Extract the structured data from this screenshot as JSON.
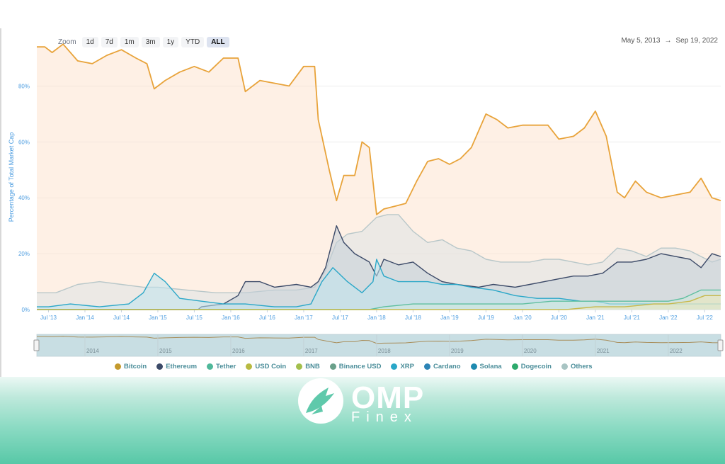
{
  "toolbar": {
    "zoom_label": "Zoom",
    "buttons": [
      "1d",
      "7d",
      "1m",
      "3m",
      "1y",
      "YTD",
      "ALL"
    ],
    "active": "ALL",
    "date_from": "May 5, 2013",
    "arrow": "→",
    "date_to": "Sep 19, 2022"
  },
  "logo": {
    "name": "OMP",
    "sub": "Finex"
  },
  "chart_data": {
    "type": "area",
    "title": "",
    "ylabel": "Percentage of Total Market Cap",
    "xlabel": "",
    "ylim": [
      0,
      90
    ],
    "y_ticks": [
      0,
      20,
      40,
      60,
      80
    ],
    "y_tick_labels": [
      "0%",
      "20%",
      "40%",
      "60%",
      "80%"
    ],
    "x_range": [
      2013.34,
      2022.72
    ],
    "x_ticks": [
      2013.5,
      2014.0,
      2014.5,
      2015.0,
      2015.5,
      2016.0,
      2016.5,
      2017.0,
      2017.5,
      2018.0,
      2018.5,
      2019.0,
      2019.5,
      2020.0,
      2020.5,
      2021.0,
      2021.5,
      2022.0,
      2022.5
    ],
    "x_tick_labels": [
      "Jul '13",
      "Jan '14",
      "Jul '14",
      "Jan '15",
      "Jul '15",
      "Jan '16",
      "Jul '16",
      "Jan '17",
      "Jul '17",
      "Jan '18",
      "Jul '18",
      "Jan '19",
      "Jul '19",
      "Jan '20",
      "Jul '20",
      "Jan '21",
      "Jul '21",
      "Jan '22",
      "Jul '22"
    ],
    "navigator_labels": [
      "2014",
      "2015",
      "2016",
      "2017",
      "2018",
      "2019",
      "2020",
      "2021",
      "2022"
    ],
    "legend_position": "bottom",
    "grid": true,
    "series": [
      {
        "name": "Bitcoin",
        "color": "#e8a33a",
        "fill": "#fde3cf",
        "points": [
          [
            2013.34,
            94
          ],
          [
            2013.45,
            94
          ],
          [
            2013.55,
            92
          ],
          [
            2013.7,
            95
          ],
          [
            2013.9,
            89
          ],
          [
            2014.1,
            88
          ],
          [
            2014.3,
            91
          ],
          [
            2014.5,
            93
          ],
          [
            2014.7,
            90
          ],
          [
            2014.85,
            88
          ],
          [
            2014.95,
            79
          ],
          [
            2015.1,
            82
          ],
          [
            2015.3,
            85
          ],
          [
            2015.5,
            87
          ],
          [
            2015.7,
            85
          ],
          [
            2015.9,
            90
          ],
          [
            2016.1,
            90
          ],
          [
            2016.2,
            78
          ],
          [
            2016.4,
            82
          ],
          [
            2016.6,
            81
          ],
          [
            2016.8,
            80
          ],
          [
            2017.0,
            87
          ],
          [
            2017.15,
            87
          ],
          [
            2017.2,
            68
          ],
          [
            2017.35,
            50
          ],
          [
            2017.45,
            39
          ],
          [
            2017.55,
            48
          ],
          [
            2017.7,
            48
          ],
          [
            2017.8,
            60
          ],
          [
            2017.9,
            58
          ],
          [
            2018.0,
            34
          ],
          [
            2018.1,
            36
          ],
          [
            2018.25,
            37
          ],
          [
            2018.4,
            38
          ],
          [
            2018.55,
            46
          ],
          [
            2018.7,
            53
          ],
          [
            2018.85,
            54
          ],
          [
            2019.0,
            52
          ],
          [
            2019.15,
            54
          ],
          [
            2019.3,
            58
          ],
          [
            2019.5,
            70
          ],
          [
            2019.65,
            68
          ],
          [
            2019.8,
            65
          ],
          [
            2020.0,
            66
          ],
          [
            2020.2,
            66
          ],
          [
            2020.35,
            66
          ],
          [
            2020.5,
            61
          ],
          [
            2020.7,
            62
          ],
          [
            2020.85,
            65
          ],
          [
            2021.0,
            71
          ],
          [
            2021.15,
            62
          ],
          [
            2021.3,
            42
          ],
          [
            2021.4,
            40
          ],
          [
            2021.55,
            46
          ],
          [
            2021.7,
            42
          ],
          [
            2021.9,
            40
          ],
          [
            2022.1,
            41
          ],
          [
            2022.3,
            42
          ],
          [
            2022.45,
            47
          ],
          [
            2022.6,
            40
          ],
          [
            2022.72,
            39
          ]
        ]
      },
      {
        "name": "Others",
        "color": "#b8c7c9",
        "fill": "#dde4e6",
        "points": [
          [
            2013.34,
            6
          ],
          [
            2013.6,
            6
          ],
          [
            2013.9,
            9
          ],
          [
            2014.2,
            10
          ],
          [
            2014.5,
            9
          ],
          [
            2014.8,
            8
          ],
          [
            2015.0,
            8
          ],
          [
            2015.4,
            7
          ],
          [
            2015.8,
            6
          ],
          [
            2016.2,
            6
          ],
          [
            2016.6,
            7
          ],
          [
            2016.9,
            7
          ],
          [
            2017.15,
            8
          ],
          [
            2017.3,
            14
          ],
          [
            2017.45,
            24
          ],
          [
            2017.6,
            27
          ],
          [
            2017.8,
            28
          ],
          [
            2018.0,
            33
          ],
          [
            2018.15,
            34
          ],
          [
            2018.3,
            34
          ],
          [
            2018.5,
            28
          ],
          [
            2018.7,
            24
          ],
          [
            2018.9,
            25
          ],
          [
            2019.1,
            22
          ],
          [
            2019.3,
            21
          ],
          [
            2019.5,
            18
          ],
          [
            2019.7,
            17
          ],
          [
            2019.9,
            17
          ],
          [
            2020.1,
            17
          ],
          [
            2020.3,
            18
          ],
          [
            2020.5,
            18
          ],
          [
            2020.7,
            17
          ],
          [
            2020.9,
            16
          ],
          [
            2021.1,
            17
          ],
          [
            2021.3,
            22
          ],
          [
            2021.5,
            21
          ],
          [
            2021.7,
            19
          ],
          [
            2021.9,
            22
          ],
          [
            2022.1,
            22
          ],
          [
            2022.3,
            21
          ],
          [
            2022.45,
            19
          ],
          [
            2022.6,
            17
          ],
          [
            2022.72,
            18
          ]
        ]
      },
      {
        "name": "Ethereum",
        "color": "#3c4a68",
        "fill": "#c5d0d9",
        "points": [
          [
            2013.34,
            0
          ],
          [
            2015.55,
            0
          ],
          [
            2015.6,
            1
          ],
          [
            2015.9,
            2
          ],
          [
            2016.1,
            5
          ],
          [
            2016.2,
            10
          ],
          [
            2016.4,
            10
          ],
          [
            2016.6,
            8
          ],
          [
            2016.9,
            9
          ],
          [
            2017.1,
            8
          ],
          [
            2017.2,
            10
          ],
          [
            2017.3,
            15
          ],
          [
            2017.45,
            30
          ],
          [
            2017.55,
            24
          ],
          [
            2017.7,
            20
          ],
          [
            2017.9,
            17
          ],
          [
            2018.0,
            12
          ],
          [
            2018.1,
            18
          ],
          [
            2018.3,
            16
          ],
          [
            2018.5,
            17
          ],
          [
            2018.7,
            13
          ],
          [
            2018.9,
            10
          ],
          [
            2019.1,
            9
          ],
          [
            2019.4,
            8
          ],
          [
            2019.6,
            9
          ],
          [
            2019.9,
            8
          ],
          [
            2020.1,
            9
          ],
          [
            2020.3,
            10
          ],
          [
            2020.5,
            11
          ],
          [
            2020.7,
            12
          ],
          [
            2020.9,
            12
          ],
          [
            2021.1,
            13
          ],
          [
            2021.3,
            17
          ],
          [
            2021.5,
            17
          ],
          [
            2021.7,
            18
          ],
          [
            2021.9,
            20
          ],
          [
            2022.1,
            19
          ],
          [
            2022.3,
            18
          ],
          [
            2022.45,
            15
          ],
          [
            2022.6,
            20
          ],
          [
            2022.72,
            19
          ]
        ]
      },
      {
        "name": "XRP",
        "color": "#2aa7c8",
        "fill": "#bfe4ee",
        "points": [
          [
            2013.34,
            1
          ],
          [
            2013.5,
            1
          ],
          [
            2013.8,
            2
          ],
          [
            2014.2,
            1
          ],
          [
            2014.6,
            2
          ],
          [
            2014.8,
            6
          ],
          [
            2014.95,
            13
          ],
          [
            2015.1,
            10
          ],
          [
            2015.3,
            4
          ],
          [
            2015.6,
            3
          ],
          [
            2015.9,
            2
          ],
          [
            2016.2,
            2
          ],
          [
            2016.6,
            1
          ],
          [
            2016.9,
            1
          ],
          [
            2017.1,
            2
          ],
          [
            2017.25,
            10
          ],
          [
            2017.4,
            15
          ],
          [
            2017.6,
            10
          ],
          [
            2017.8,
            6
          ],
          [
            2017.95,
            10
          ],
          [
            2018.0,
            18
          ],
          [
            2018.1,
            12
          ],
          [
            2018.3,
            10
          ],
          [
            2018.5,
            10
          ],
          [
            2018.7,
            10
          ],
          [
            2018.9,
            9
          ],
          [
            2019.1,
            9
          ],
          [
            2019.3,
            8
          ],
          [
            2019.6,
            7
          ],
          [
            2019.9,
            5
          ],
          [
            2020.2,
            4
          ],
          [
            2020.5,
            4
          ],
          [
            2020.8,
            3
          ],
          [
            2021.0,
            3
          ],
          [
            2021.2,
            2
          ],
          [
            2021.4,
            2
          ],
          [
            2021.7,
            2
          ],
          [
            2022.0,
            2
          ],
          [
            2022.3,
            2
          ],
          [
            2022.72,
            2
          ]
        ]
      },
      {
        "name": "Tether",
        "color": "#5fbfa0",
        "fill": "#cfe9df",
        "points": [
          [
            2013.34,
            0
          ],
          [
            2017.9,
            0
          ],
          [
            2018.1,
            1
          ],
          [
            2018.5,
            2
          ],
          [
            2019.0,
            2
          ],
          [
            2019.5,
            2
          ],
          [
            2020.0,
            2
          ],
          [
            2020.4,
            3
          ],
          [
            2020.8,
            3
          ],
          [
            2021.0,
            3
          ],
          [
            2021.4,
            3
          ],
          [
            2021.8,
            3
          ],
          [
            2022.0,
            3
          ],
          [
            2022.2,
            4
          ],
          [
            2022.45,
            7
          ],
          [
            2022.6,
            7
          ],
          [
            2022.72,
            7
          ]
        ]
      },
      {
        "name": "USD Coin",
        "color": "#c7b84a",
        "fill": "#efe8b9",
        "points": [
          [
            2013.34,
            0
          ],
          [
            2020.6,
            0
          ],
          [
            2020.8,
            0.5
          ],
          [
            2021.0,
            1
          ],
          [
            2021.4,
            1
          ],
          [
            2021.8,
            2
          ],
          [
            2022.0,
            2
          ],
          [
            2022.3,
            3
          ],
          [
            2022.5,
            5
          ],
          [
            2022.72,
            5
          ]
        ]
      }
    ],
    "legend": [
      {
        "name": "Bitcoin",
        "color": "#c49a2d"
      },
      {
        "name": "Ethereum",
        "color": "#3c4a68"
      },
      {
        "name": "Tether",
        "color": "#4fb89a"
      },
      {
        "name": "USD Coin",
        "color": "#b8ba42"
      },
      {
        "name": "BNB",
        "color": "#a3bf4d"
      },
      {
        "name": "Binance USD",
        "color": "#6aa08a"
      },
      {
        "name": "XRP",
        "color": "#2aa7c8"
      },
      {
        "name": "Cardano",
        "color": "#2c84b6"
      },
      {
        "name": "Solana",
        "color": "#1f8ab0"
      },
      {
        "name": "Dogecoin",
        "color": "#2eaa6c"
      },
      {
        "name": "Others",
        "color": "#a8c4c3"
      }
    ]
  }
}
